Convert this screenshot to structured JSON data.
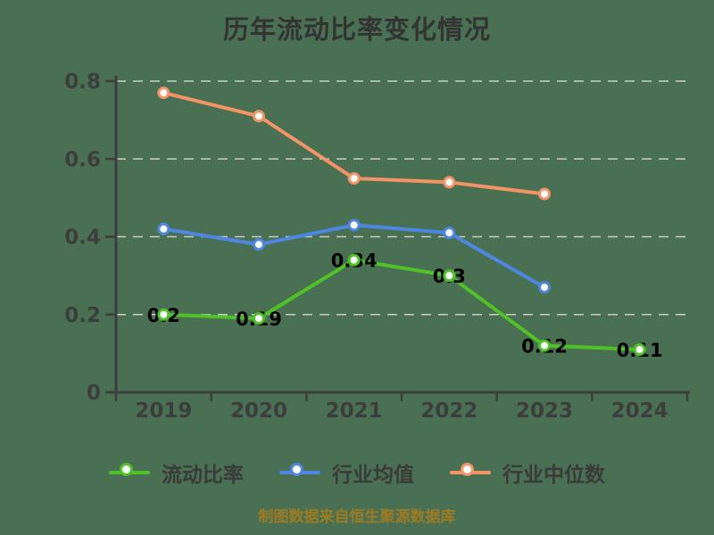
{
  "title": "历年流动比率变化情况",
  "footer": "制图数据来自恒生聚源数据库",
  "colors": {
    "background": "#4a7053",
    "title_text": "#333333",
    "axis": "#3d3d3d",
    "tick_label": "#3d3d3d",
    "gridline": "#cecaca",
    "data_label": "#000000",
    "legend_text": "#3a3a3a",
    "footer_text": "#9c7b22",
    "marker_fill": "#ffffff",
    "series_green": "#4fc228",
    "series_blue": "#4d86e3",
    "series_orange": "#f49366"
  },
  "chart_data": {
    "type": "line",
    "title": "历年流动比率变化情况",
    "categories": [
      "2019",
      "2020",
      "2021",
      "2022",
      "2023",
      "2024"
    ],
    "series": [
      {
        "name": "流动比率",
        "color": "#4fc228",
        "values": [
          0.2,
          0.19,
          0.34,
          0.3,
          0.12,
          0.11
        ],
        "point_labels": [
          "0.2",
          "0.19",
          "0.34",
          "0.3",
          "0.12",
          "0.11"
        ]
      },
      {
        "name": "行业均值",
        "color": "#4d86e3",
        "values": [
          0.42,
          0.38,
          0.43,
          0.41,
          0.27,
          null
        ],
        "point_labels": null
      },
      {
        "name": "行业中位数",
        "color": "#f49366",
        "values": [
          0.77,
          0.71,
          0.55,
          0.54,
          0.51,
          null
        ],
        "point_labels": null
      }
    ],
    "xlabel": "",
    "ylabel": "",
    "ylim": [
      0,
      0.8
    ],
    "yticks": [
      0,
      0.2,
      0.4,
      0.6,
      0.8
    ],
    "grid": true,
    "grid_style": "dashed",
    "legend_position": "bottom",
    "marker": "circle-open"
  }
}
